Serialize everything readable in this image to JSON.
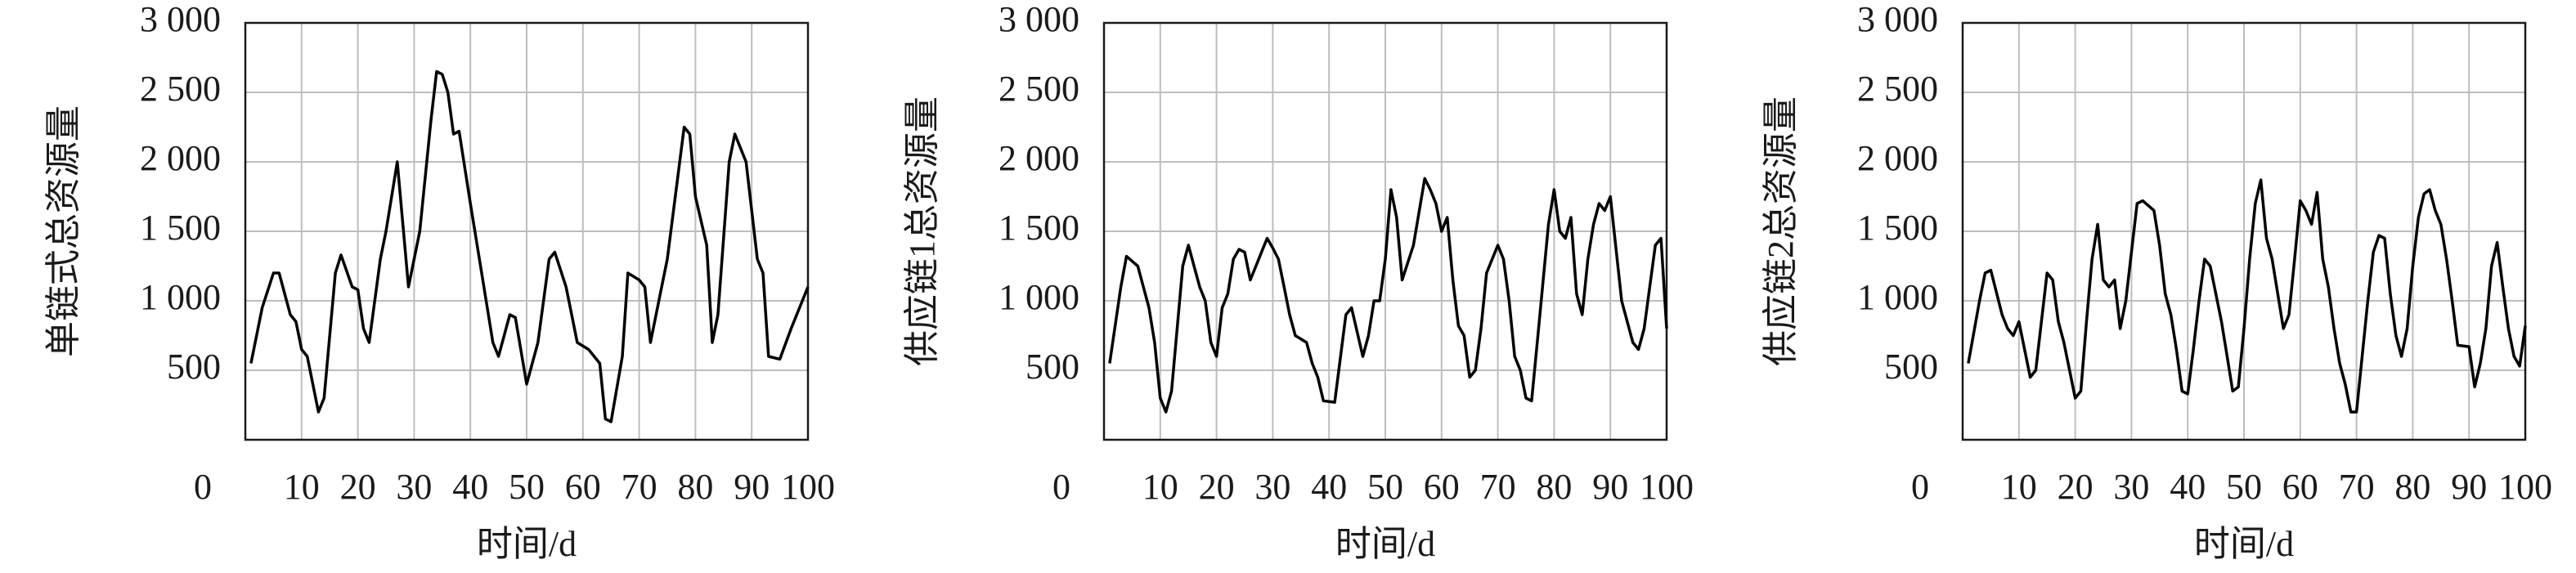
{
  "chart_data": [
    {
      "type": "line",
      "ylabel": "单链式总资源量",
      "xlabel": "时间/d",
      "color": "#000000",
      "grid": true,
      "xlim": [
        0,
        100
      ],
      "xticks": [
        0,
        10,
        20,
        30,
        40,
        50,
        60,
        70,
        80,
        90,
        100
      ],
      "ylim": [
        0,
        3000
      ],
      "yticks": [
        500,
        {
          "value": 1000,
          "label": "1 000"
        },
        {
          "value": 1500,
          "label": "1 500"
        },
        {
          "value": 2000,
          "label": "2 000"
        },
        {
          "value": 2500,
          "label": "2 500"
        },
        {
          "value": 3000,
          "label": "3 000"
        }
      ],
      "x": [
        1,
        3,
        5,
        6,
        8,
        9,
        10,
        11,
        13,
        14,
        16,
        17,
        19,
        20,
        21,
        22,
        24,
        25,
        27,
        29,
        31,
        33,
        34,
        35,
        36,
        37,
        38,
        40,
        42,
        44,
        45,
        47,
        48,
        50,
        52,
        54,
        55,
        57,
        59,
        61,
        63,
        64,
        65,
        67,
        68,
        70,
        71,
        72,
        74,
        75,
        78,
        79,
        80,
        82,
        83,
        84,
        86,
        87,
        89,
        91,
        92,
        93,
        95,
        97,
        100
      ],
      "values": [
        550,
        950,
        1200,
        1200,
        900,
        850,
        650,
        600,
        200,
        300,
        1200,
        1330,
        1100,
        1080,
        800,
        700,
        1300,
        1500,
        2000,
        1100,
        1500,
        2300,
        2650,
        2630,
        2500,
        2200,
        2220,
        1700,
        1200,
        700,
        600,
        900,
        880,
        400,
        700,
        1300,
        1350,
        1100,
        700,
        650,
        550,
        150,
        130,
        600,
        1200,
        1150,
        1100,
        700,
        1100,
        1300,
        2250,
        2200,
        1750,
        1400,
        700,
        900,
        2000,
        2200,
        2000,
        1300,
        1200,
        600,
        580,
        800,
        1100
      ]
    },
    {
      "type": "line",
      "ylabel": "供应链1总资源量",
      "xlabel": "时间/d",
      "color": "#000000",
      "grid": true,
      "xlim": [
        0,
        100
      ],
      "xticks": [
        0,
        10,
        20,
        30,
        40,
        50,
        60,
        70,
        80,
        90,
        100
      ],
      "ylim": [
        0,
        3000
      ],
      "yticks": [
        500,
        {
          "value": 1000,
          "label": "1 000"
        },
        {
          "value": 1500,
          "label": "1 500"
        },
        {
          "value": 2000,
          "label": "2 000"
        },
        {
          "value": 2500,
          "label": "2 500"
        },
        {
          "value": 3000,
          "label": "3 000"
        }
      ],
      "x": [
        1,
        3,
        4,
        6,
        8,
        9,
        10,
        11,
        12,
        14,
        15,
        17,
        18,
        19,
        20,
        21,
        22,
        23,
        24,
        25,
        26,
        27,
        28,
        29,
        30,
        31,
        32,
        33,
        34,
        36,
        37,
        38,
        39,
        41,
        43,
        44,
        46,
        47,
        48,
        49,
        50,
        51,
        52,
        53,
        55,
        57,
        58,
        59,
        60,
        61,
        62,
        63,
        64,
        65,
        66,
        67,
        68,
        70,
        71,
        72,
        73,
        74,
        75,
        76,
        77,
        79,
        80,
        81,
        82,
        83,
        84,
        85,
        86,
        87,
        88,
        89,
        90,
        92,
        94,
        95,
        96,
        98,
        99,
        100
      ],
      "values": [
        550,
        1100,
        1320,
        1250,
        950,
        700,
        300,
        200,
        350,
        1250,
        1400,
        1100,
        1000,
        700,
        600,
        950,
        1050,
        1300,
        1370,
        1350,
        1150,
        1250,
        1350,
        1450,
        1380,
        1300,
        1100,
        900,
        750,
        700,
        550,
        450,
        280,
        270,
        900,
        950,
        600,
        750,
        1000,
        1000,
        1300,
        1800,
        1600,
        1150,
        1400,
        1880,
        1800,
        1700,
        1500,
        1600,
        1150,
        820,
        750,
        450,
        500,
        800,
        1200,
        1400,
        1300,
        1000,
        600,
        500,
        300,
        280,
        700,
        1550,
        1800,
        1500,
        1450,
        1600,
        1050,
        900,
        1300,
        1550,
        1700,
        1650,
        1750,
        1000,
        700,
        650,
        800,
        1400,
        1450,
        800
      ]
    },
    {
      "type": "line",
      "ylabel": "供应链2总资源量",
      "xlabel": "时间/d",
      "color": "#000000",
      "grid": true,
      "xlim": [
        0,
        100
      ],
      "xticks": [
        0,
        10,
        20,
        30,
        40,
        50,
        60,
        70,
        80,
        90,
        100
      ],
      "ylim": [
        0,
        3000
      ],
      "yticks": [
        500,
        {
          "value": 1000,
          "label": "1 000"
        },
        {
          "value": 1500,
          "label": "1 500"
        },
        {
          "value": 2000,
          "label": "2 000"
        },
        {
          "value": 2500,
          "label": "2 500"
        },
        {
          "value": 3000,
          "label": "3 000"
        }
      ],
      "x": [
        1,
        3,
        4,
        5,
        7,
        8,
        9,
        10,
        11,
        12,
        13,
        15,
        16,
        17,
        18,
        19,
        20,
        21,
        22,
        23,
        24,
        25,
        26,
        27,
        28,
        29,
        30,
        31,
        32,
        34,
        35,
        36,
        37,
        38,
        39,
        40,
        41,
        42,
        43,
        44,
        46,
        47,
        48,
        49,
        50,
        51,
        52,
        53,
        54,
        55,
        56,
        57,
        58,
        59,
        60,
        61,
        62,
        63,
        64,
        65,
        66,
        67,
        68,
        69,
        70,
        71,
        72,
        73,
        74,
        75,
        76,
        77,
        78,
        79,
        80,
        81,
        82,
        83,
        84,
        85,
        86,
        87,
        88,
        90,
        91,
        92,
        93,
        94,
        95,
        96,
        97,
        98,
        99,
        100
      ],
      "values": [
        550,
        1000,
        1200,
        1220,
        900,
        800,
        750,
        850,
        650,
        450,
        500,
        1200,
        1150,
        850,
        700,
        500,
        300,
        350,
        850,
        1300,
        1550,
        1150,
        1100,
        1150,
        800,
        1000,
        1350,
        1700,
        1720,
        1650,
        1400,
        1050,
        900,
        650,
        350,
        330,
        650,
        1000,
        1300,
        1250,
        850,
        600,
        350,
        380,
        800,
        1300,
        1700,
        1870,
        1450,
        1300,
        1050,
        800,
        900,
        1300,
        1720,
        1650,
        1550,
        1780,
        1300,
        1100,
        800,
        550,
        400,
        200,
        200,
        600,
        1000,
        1350,
        1470,
        1450,
        1050,
        750,
        600,
        800,
        1250,
        1600,
        1770,
        1800,
        1650,
        1550,
        1300,
        1000,
        680,
        670,
        380,
        550,
        800,
        1250,
        1420,
        1100,
        800,
        600,
        530,
        820
      ]
    }
  ]
}
